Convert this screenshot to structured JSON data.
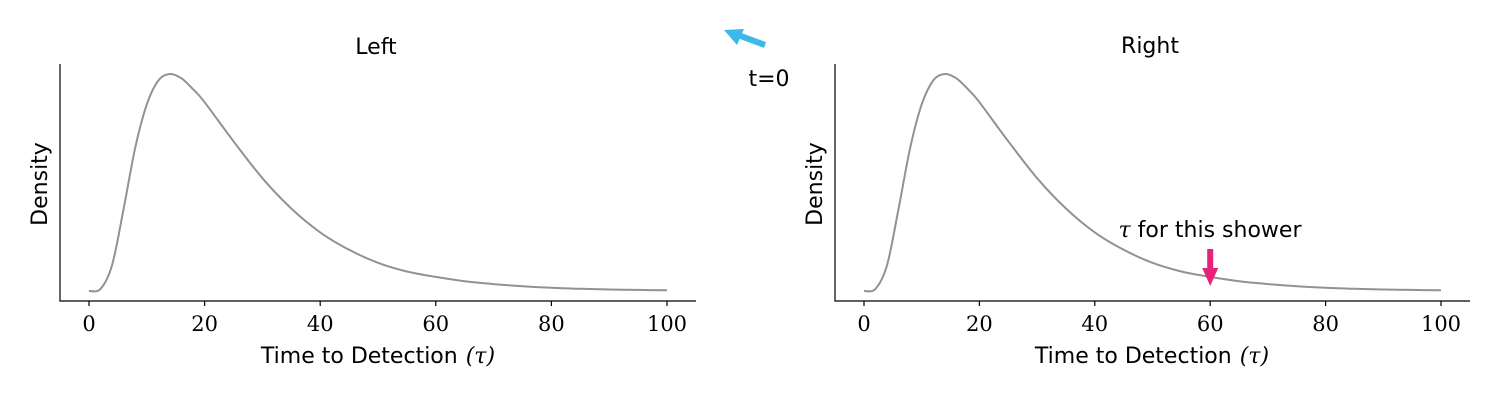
{
  "chart_data": [
    {
      "type": "line",
      "title": "Left",
      "xlabel": "Time to Detection",
      "xlabel_symbol": "(τ)",
      "ylabel": "Density",
      "xlim": [
        0,
        100
      ],
      "x_ticks": [
        "0",
        "20",
        "40",
        "60",
        "80",
        "100"
      ],
      "y_ticks": [],
      "series": [
        {
          "name": "density",
          "color": "#929292",
          "x": [
            0,
            2,
            4,
            6,
            8,
            10,
            12,
            14,
            16,
            18,
            20,
            25,
            30,
            35,
            40,
            45,
            50,
            55,
            60,
            65,
            70,
            75,
            80,
            85,
            90,
            95,
            100
          ],
          "y": [
            0.0,
            0.01,
            0.12,
            0.38,
            0.66,
            0.86,
            0.97,
            1.0,
            0.98,
            0.93,
            0.87,
            0.69,
            0.52,
            0.38,
            0.27,
            0.19,
            0.13,
            0.09,
            0.065,
            0.045,
            0.032,
            0.022,
            0.015,
            0.01,
            0.007,
            0.005,
            0.003
          ]
        }
      ]
    },
    {
      "type": "line",
      "title": "Right",
      "xlabel": "Time to Detection",
      "xlabel_symbol": "(τ)",
      "ylabel": "Density",
      "xlim": [
        0,
        100
      ],
      "x_ticks": [
        "0",
        "20",
        "40",
        "60",
        "80",
        "100"
      ],
      "y_ticks": [],
      "series": [
        {
          "name": "density",
          "color": "#929292",
          "x": [
            0,
            2,
            4,
            6,
            8,
            10,
            12,
            14,
            16,
            18,
            20,
            25,
            30,
            35,
            40,
            45,
            50,
            55,
            60,
            65,
            70,
            75,
            80,
            85,
            90,
            95,
            100
          ],
          "y": [
            0.0,
            0.01,
            0.12,
            0.38,
            0.66,
            0.86,
            0.97,
            1.0,
            0.98,
            0.93,
            0.87,
            0.69,
            0.52,
            0.38,
            0.27,
            0.19,
            0.13,
            0.09,
            0.065,
            0.045,
            0.032,
            0.022,
            0.015,
            0.01,
            0.007,
            0.005,
            0.003
          ]
        }
      ],
      "annotations": [
        {
          "text_symbol": "τ",
          "text": "for this shower",
          "x": 60,
          "arrow_color": "#e8217a"
        }
      ]
    }
  ],
  "middle_annotation": {
    "text": "t=0",
    "arrow_color": "#3bb9ea"
  }
}
